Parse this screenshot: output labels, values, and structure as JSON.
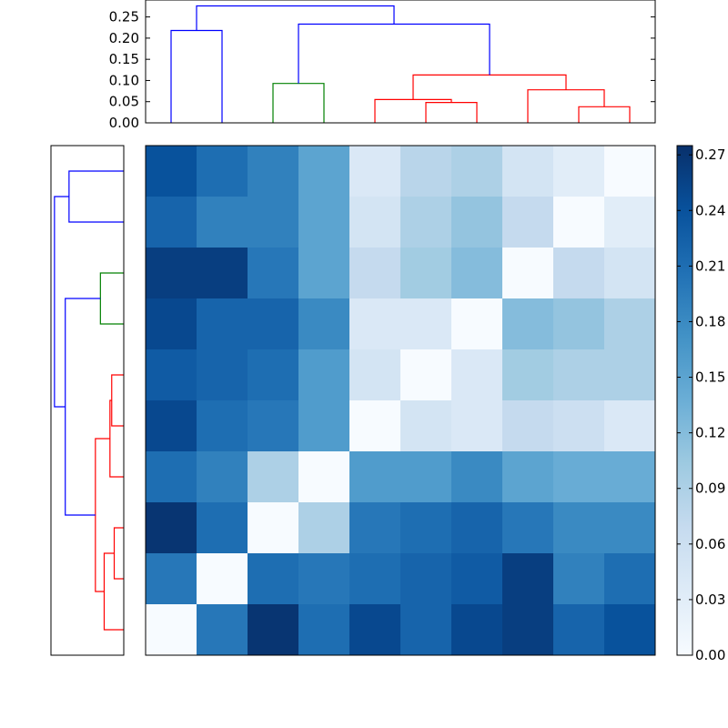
{
  "chart_data": [
    {
      "type": "heatmap",
      "title": "",
      "xlabel": "",
      "ylabel": "",
      "colormap": "Blues",
      "colorbar": {
        "vmin": 0.0,
        "vmax": 0.275,
        "tick_values": [
          0.0,
          0.03,
          0.06,
          0.09,
          0.12,
          0.15,
          0.18,
          0.21,
          0.24,
          0.27
        ],
        "tick_labels": [
          "0.00",
          "0.03",
          "0.06",
          "0.09",
          "0.12",
          "0.15",
          "0.18",
          "0.21",
          "0.24",
          "0.27"
        ]
      },
      "matrix": [
        [
          0.24,
          0.21,
          0.19,
          0.15,
          0.04,
          0.08,
          0.09,
          0.05,
          0.03,
          0.0
        ],
        [
          0.22,
          0.19,
          0.19,
          0.15,
          0.05,
          0.09,
          0.11,
          0.07,
          0.0,
          0.03
        ],
        [
          0.26,
          0.26,
          0.2,
          0.15,
          0.07,
          0.1,
          0.12,
          0.0,
          0.07,
          0.05
        ],
        [
          0.25,
          0.22,
          0.22,
          0.18,
          0.04,
          0.04,
          0.0,
          0.12,
          0.11,
          0.09
        ],
        [
          0.23,
          0.22,
          0.21,
          0.16,
          0.05,
          0.0,
          0.04,
          0.1,
          0.09,
          0.09
        ],
        [
          0.25,
          0.21,
          0.2,
          0.16,
          0.0,
          0.05,
          0.04,
          0.07,
          0.06,
          0.04
        ],
        [
          0.21,
          0.19,
          0.09,
          0.0,
          0.16,
          0.16,
          0.18,
          0.15,
          0.14,
          0.14
        ],
        [
          0.27,
          0.21,
          0.0,
          0.09,
          0.2,
          0.21,
          0.22,
          0.2,
          0.18,
          0.18
        ],
        [
          0.2,
          0.0,
          0.21,
          0.2,
          0.21,
          0.22,
          0.23,
          0.26,
          0.19,
          0.21
        ],
        [
          0.0,
          0.2,
          0.27,
          0.21,
          0.25,
          0.22,
          0.25,
          0.26,
          0.22,
          0.24
        ]
      ]
    },
    {
      "type": "dendrogram",
      "orientation": "top",
      "y_ticks": [
        0.0,
        0.05,
        0.1,
        0.15,
        0.2,
        0.25
      ],
      "y_tick_labels": [
        "0.00",
        "0.05",
        "0.10",
        "0.15",
        "0.20",
        "0.25"
      ],
      "ylim": [
        0.0,
        0.29
      ],
      "links": [
        {
          "left": 0,
          "right": 1,
          "height": 0.218,
          "color": "#0000ff"
        },
        {
          "left": 2,
          "right": 3,
          "height": 0.093,
          "color": "#008000"
        },
        {
          "left": 5,
          "right": 6,
          "height": 0.048,
          "color": "#ff0000"
        },
        {
          "left": 4,
          "right": 5.5,
          "height": 0.055,
          "color": "#ff0000"
        },
        {
          "left": 8,
          "right": 9,
          "height": 0.038,
          "color": "#ff0000"
        },
        {
          "left": 7,
          "right": 8.5,
          "height": 0.078,
          "color": "#ff0000"
        },
        {
          "left": 4.75,
          "right": 7.75,
          "height": 0.113,
          "color": "#ff0000"
        },
        {
          "left": 2.5,
          "right": 6.25,
          "height": 0.233,
          "color": "#0000ff"
        },
        {
          "left": 0.5,
          "right": 4.375,
          "height": 0.276,
          "color": "#0000ff"
        }
      ]
    },
    {
      "type": "dendrogram",
      "orientation": "left",
      "xlim": [
        0.0,
        0.29
      ],
      "links": [
        {
          "low": 0,
          "high": 1,
          "height": 0.218,
          "color": "#0000ff"
        },
        {
          "low": 2,
          "high": 3,
          "height": 0.093,
          "color": "#008000"
        },
        {
          "low": 4,
          "high": 5,
          "height": 0.048,
          "color": "#ff0000"
        },
        {
          "low": 4.5,
          "high": 6,
          "height": 0.055,
          "color": "#ff0000"
        },
        {
          "low": 7,
          "high": 8,
          "height": 0.038,
          "color": "#ff0000"
        },
        {
          "low": 7.5,
          "high": 9,
          "height": 0.078,
          "color": "#ff0000"
        },
        {
          "low": 5.25,
          "high": 8.25,
          "height": 0.113,
          "color": "#ff0000"
        },
        {
          "low": 2.5,
          "high": 6.75,
          "height": 0.233,
          "color": "#0000ff"
        },
        {
          "low": 0.5,
          "high": 4.625,
          "height": 0.276,
          "color": "#0000ff"
        }
      ]
    }
  ]
}
